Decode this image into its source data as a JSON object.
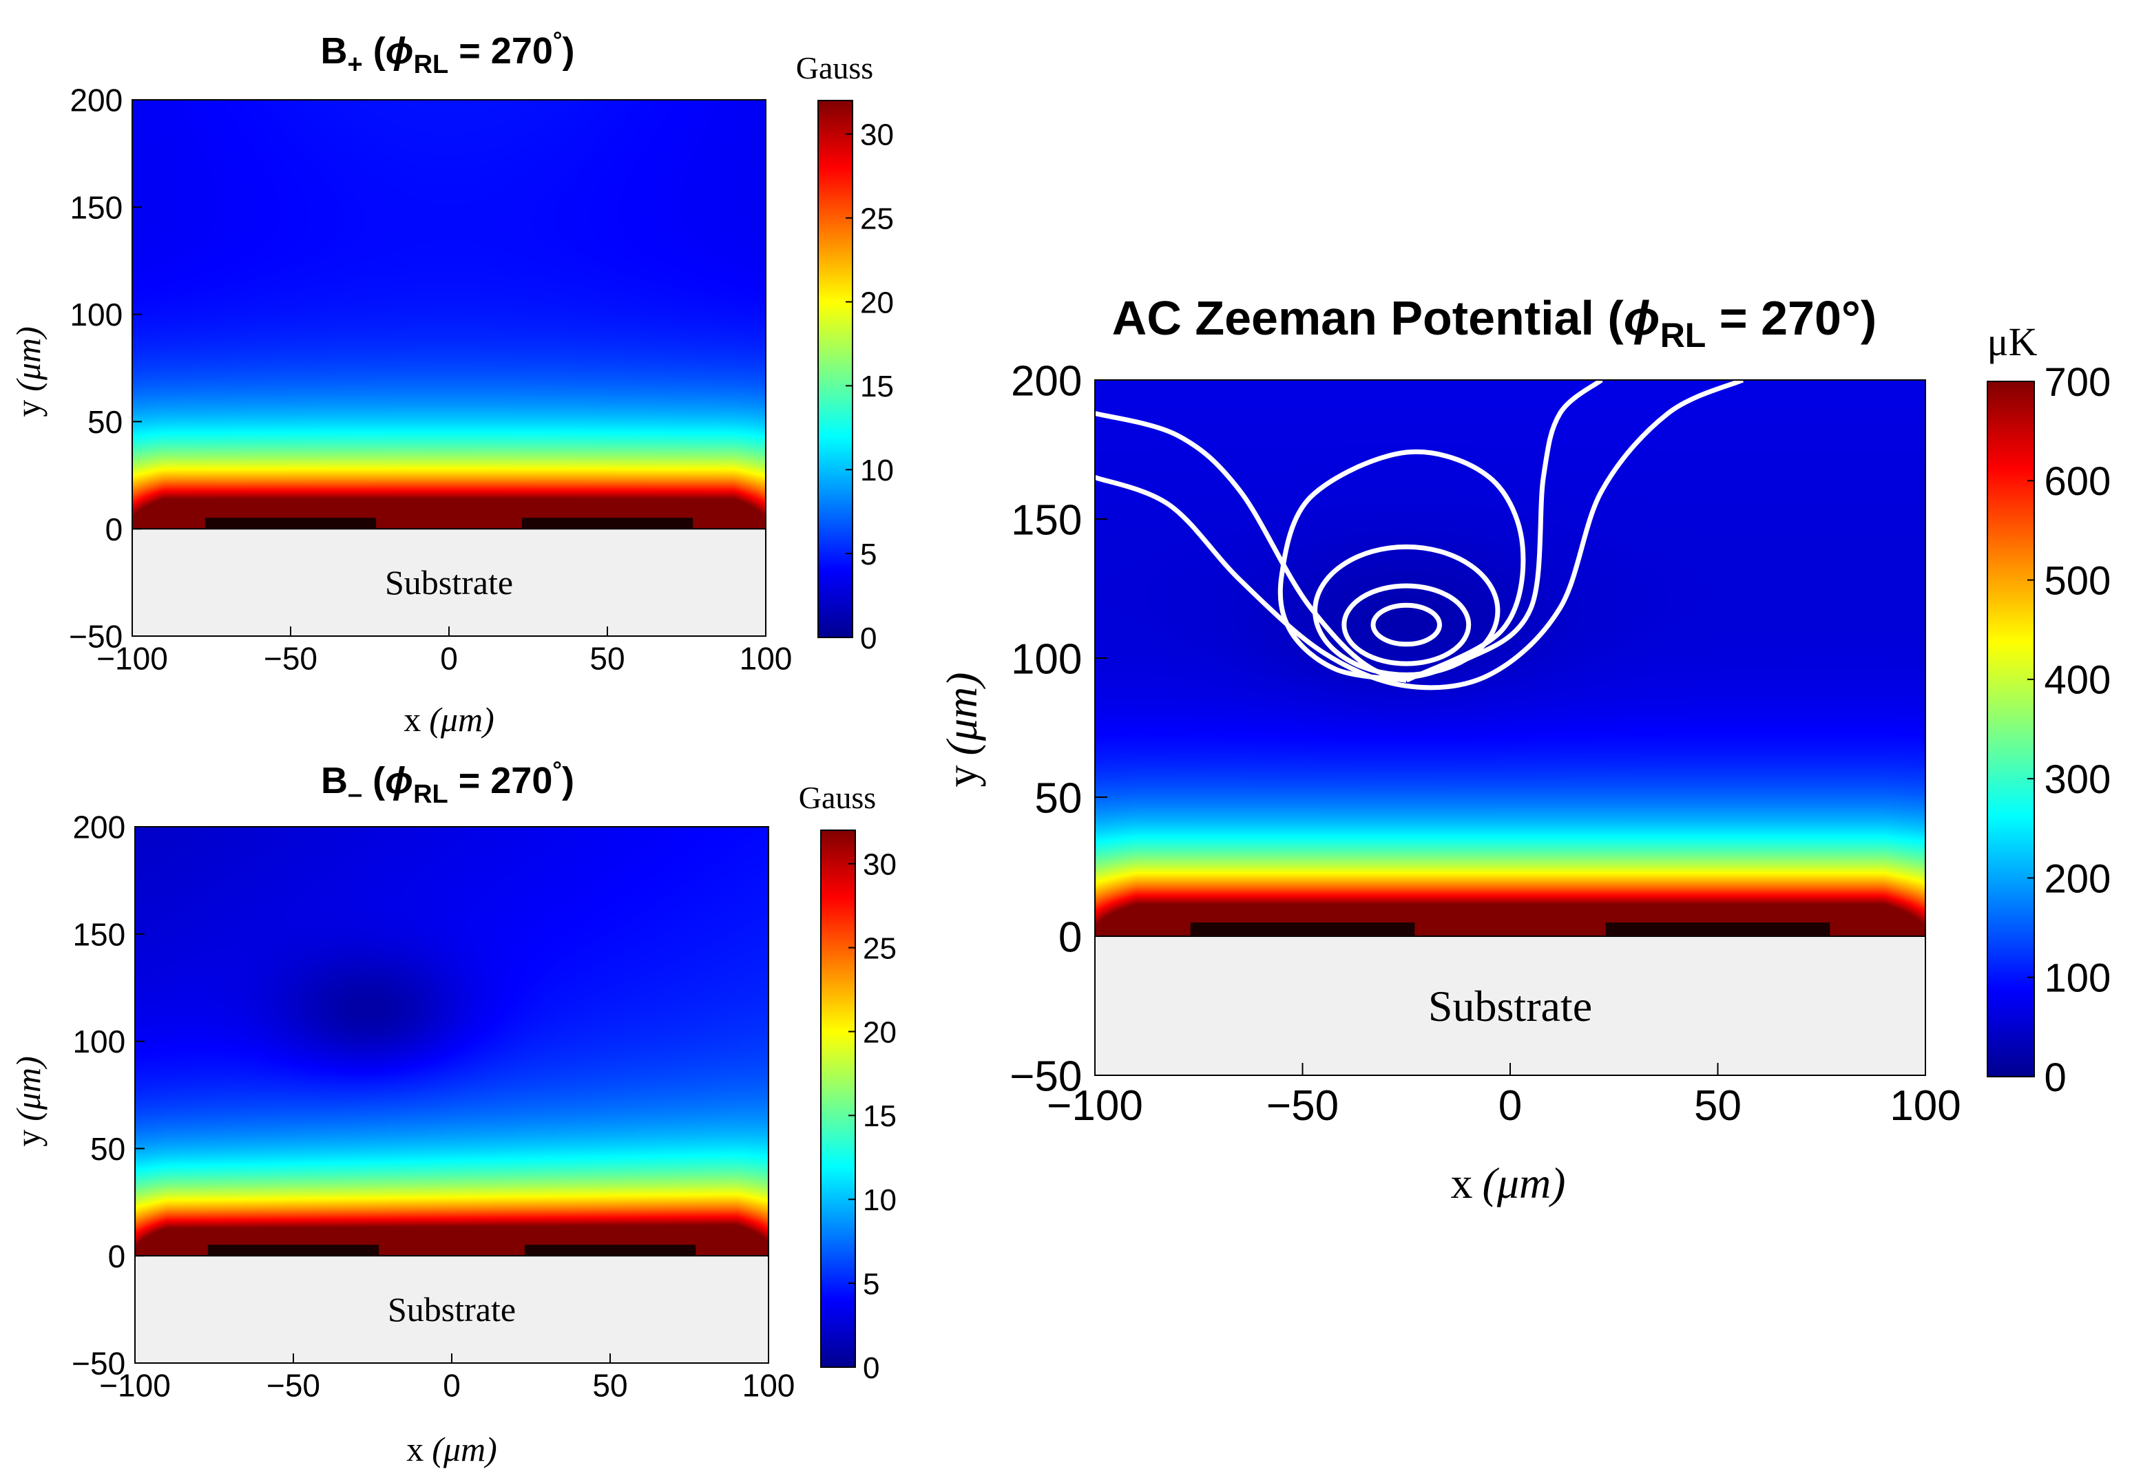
{
  "chart_data": [
    {
      "type": "heatmap",
      "title": {
        "main": "B",
        "sub": "+",
        "paren_open": " (",
        "phi": "ϕ",
        "phi_sub": "RL",
        "equals_value": " = 270",
        "degree": "°",
        "paren_close": ")"
      },
      "xlabel": {
        "var": "x",
        "unit": "(μm)"
      },
      "ylabel": {
        "var": "y",
        "unit": "(μm)"
      },
      "xlim": [
        -100,
        100
      ],
      "ylim": [
        -50,
        200
      ],
      "xticks": [
        -100,
        -50,
        0,
        50,
        100
      ],
      "xtick_labels": [
        "−100",
        "−50",
        "0",
        "50",
        "100"
      ],
      "yticks": [
        -50,
        0,
        50,
        100,
        150,
        200
      ],
      "ytick_labels": [
        "−50",
        "0",
        "50",
        "100",
        "150",
        "200"
      ],
      "colorbar": {
        "label": "Gauss",
        "range": [
          0,
          32
        ],
        "ticks": [
          0,
          5,
          10,
          15,
          20,
          25,
          30
        ],
        "tick_labels": [
          "0",
          "5",
          "10",
          "15",
          "20",
          "25",
          "30"
        ]
      },
      "substrate_label": "Substrate",
      "wires": [
        [
          -77,
          -23
        ],
        [
          23,
          77
        ]
      ],
      "field_profile": {
        "near_surface_peak": 32,
        "decay_height": 30,
        "min_value": 3
      }
    },
    {
      "type": "heatmap",
      "title": {
        "main": "B",
        "sub": "–",
        "paren_open": " (",
        "phi": "ϕ",
        "phi_sub": "RL",
        "equals_value": " = 270",
        "degree": "°",
        "paren_close": ")"
      },
      "xlabel": {
        "var": "x",
        "unit": "(μm)"
      },
      "ylabel": {
        "var": "y",
        "unit": "(μm)"
      },
      "xlim": [
        -100,
        100
      ],
      "ylim": [
        -50,
        200
      ],
      "xticks": [
        -100,
        -50,
        0,
        50,
        100
      ],
      "xtick_labels": [
        "−100",
        "−50",
        "0",
        "50",
        "100"
      ],
      "yticks": [
        -50,
        0,
        50,
        100,
        150,
        200
      ],
      "ytick_labels": [
        "−50",
        "0",
        "50",
        "100",
        "150",
        "200"
      ],
      "colorbar": {
        "label": "Gauss",
        "range": [
          0,
          32
        ],
        "ticks": [
          0,
          5,
          10,
          15,
          20,
          25,
          30
        ],
        "tick_labels": [
          "0",
          "5",
          "10",
          "15",
          "20",
          "25",
          "30"
        ]
      },
      "substrate_label": "Substrate",
      "wires": [
        [
          -77,
          -23
        ],
        [
          23,
          77
        ]
      ],
      "field_minimum": {
        "x": -25,
        "y": 112,
        "value": 0.5
      }
    },
    {
      "type": "heatmap",
      "title": {
        "text": "AC Zeeman Potential (",
        "phi": "ϕ",
        "phi_sub": "RL",
        "equals_value": " = 270°)"
      },
      "xlabel": {
        "var": "x",
        "unit": "(μm)"
      },
      "ylabel": {
        "var": "y",
        "unit": "(μm)"
      },
      "xlim": [
        -100,
        100
      ],
      "ylim": [
        -50,
        200
      ],
      "xticks": [
        -100,
        -50,
        0,
        50,
        100
      ],
      "xtick_labels": [
        "−100",
        "−50",
        "0",
        "50",
        "100"
      ],
      "yticks": [
        -50,
        0,
        50,
        100,
        150,
        200
      ],
      "ytick_labels": [
        "−50",
        "0",
        "50",
        "100",
        "150",
        "200"
      ],
      "colorbar": {
        "label": "μK",
        "range": [
          0,
          700
        ],
        "ticks": [
          0,
          100,
          200,
          300,
          400,
          500,
          600,
          700
        ],
        "tick_labels": [
          "0",
          "100",
          "200",
          "300",
          "400",
          "500",
          "600",
          "700"
        ]
      },
      "substrate_label": "Substrate",
      "wires": [
        [
          -77,
          -23
        ],
        [
          23,
          77
        ]
      ],
      "trap_minimum": {
        "x": -25,
        "y": 112
      },
      "contours": [
        {
          "kind": "ellipse",
          "cx": -25,
          "cy": 112,
          "rx": 8,
          "ry": 7
        },
        {
          "kind": "ellipse",
          "cx": -25,
          "cy": 112,
          "rx": 15,
          "ry": 14
        },
        {
          "kind": "ellipse",
          "cx": -25,
          "cy": 117,
          "rx": 22,
          "ry": 23
        },
        {
          "kind": "loop",
          "points": [
            [
              -25,
              92
            ],
            [
              -42,
              96
            ],
            [
              -53,
              110
            ],
            [
              -55,
              130
            ],
            [
              -48,
              158
            ],
            [
              -25,
              174
            ],
            [
              -5,
              165
            ],
            [
              3,
              140
            ],
            [
              -2,
              110
            ],
            [
              -25,
              92
            ]
          ]
        },
        {
          "kind": "curve",
          "points": [
            [
              -100,
              188
            ],
            [
              -80,
              180
            ],
            [
              -65,
              160
            ],
            [
              -48,
              118
            ],
            [
              -30,
              94
            ],
            [
              -10,
              100
            ],
            [
              5,
              118
            ],
            [
              8,
              165
            ],
            [
              12,
              188
            ],
            [
              22,
              200
            ]
          ]
        },
        {
          "kind": "curve",
          "points": [
            [
              -100,
              165
            ],
            [
              -82,
              155
            ],
            [
              -65,
              128
            ],
            [
              -45,
              102
            ],
            [
              -25,
              90
            ],
            [
              -5,
              94
            ],
            [
              12,
              118
            ],
            [
              22,
              160
            ],
            [
              38,
              188
            ],
            [
              56,
              200
            ]
          ]
        }
      ]
    }
  ]
}
